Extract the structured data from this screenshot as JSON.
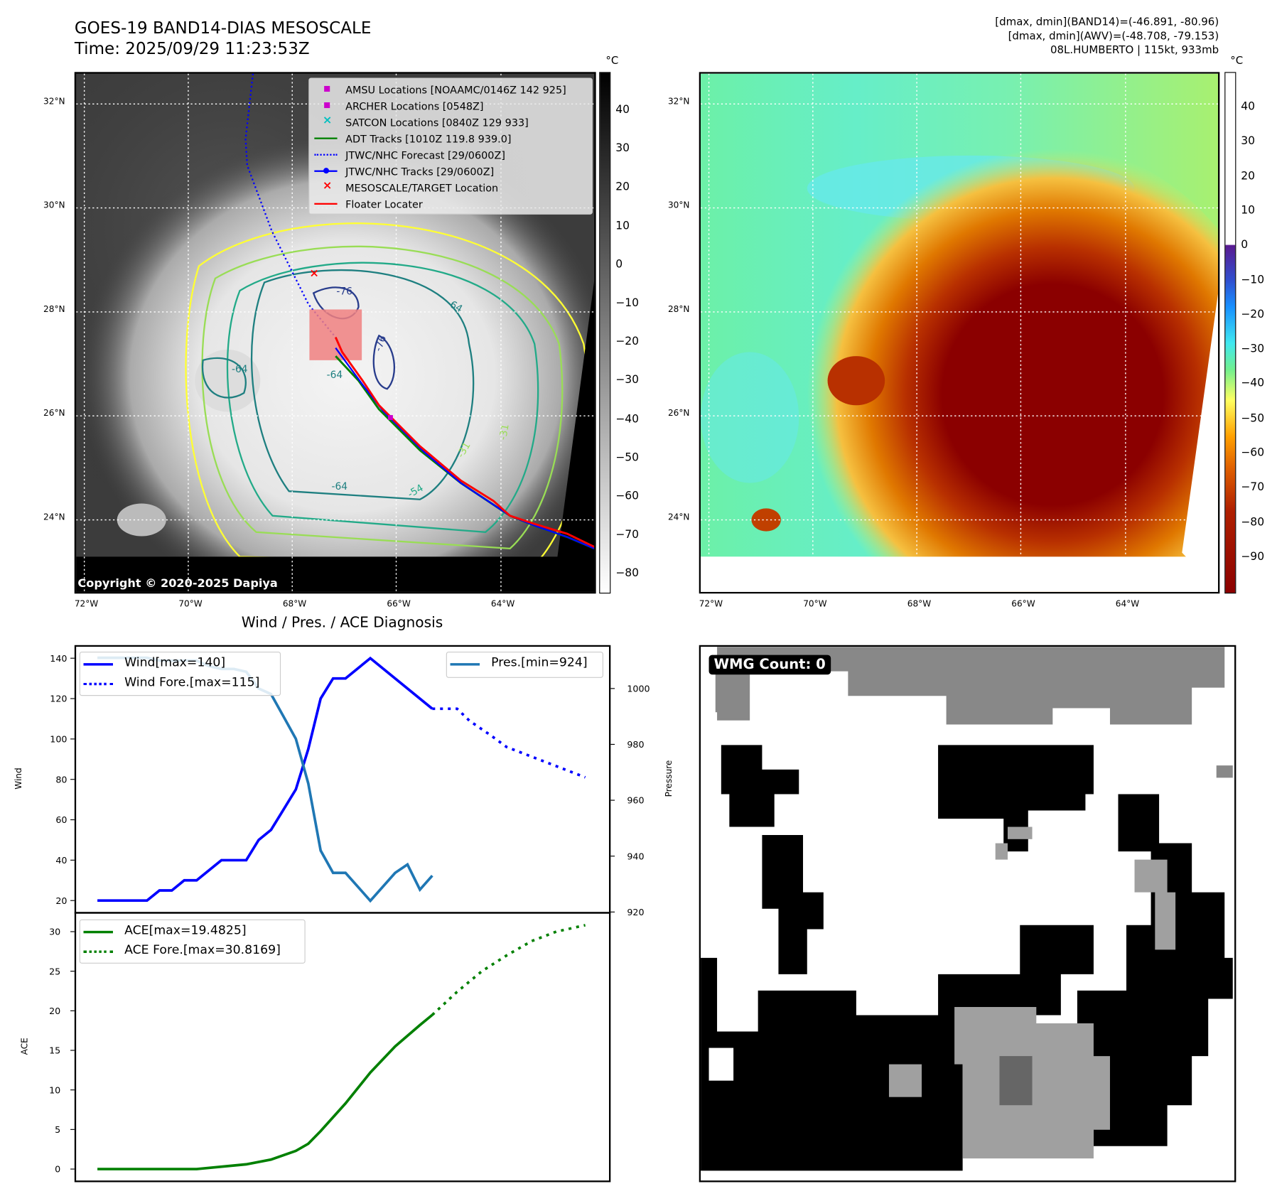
{
  "header": {
    "title_line1": "GOES-19 BAND14-DIAS MESOSCALE",
    "title_line2": "Time: 2025/09/29 11:23:53Z",
    "stats_line1": "[dmax, dmin](BAND14)=(-46.891, -80.96)",
    "stats_line2": "[dmax, dmin](AWV)=(-48.708, -79.153)",
    "stats_line3": "08L.HUMBERTO | 115kt, 933mb"
  },
  "maps": {
    "lon_ticks": [
      "72°W",
      "70°W",
      "68°W",
      "66°W",
      "64°W"
    ],
    "lat_ticks": [
      "32°N",
      "30°N",
      "28°N",
      "26°N",
      "24°N"
    ],
    "left_colorbar": {
      "unit": "°C",
      "ticks": [
        "40",
        "30",
        "20",
        "10",
        "0",
        "−10",
        "−20",
        "−30",
        "−40",
        "−50",
        "−60",
        "−70",
        "−80"
      ]
    },
    "right_colorbar": {
      "unit": "°C",
      "ticks": [
        "40",
        "30",
        "20",
        "10",
        "0",
        "−10",
        "−20",
        "−30",
        "−40",
        "−50",
        "−60",
        "−70",
        "−80",
        "−90"
      ]
    },
    "legend": [
      {
        "label": "AMSU Locations [NOAAMC/0146Z 142 925]",
        "color": "#cc00cc",
        "symbol": "square"
      },
      {
        "label": "ARCHER Locations [0548Z]",
        "color": "#cc00cc",
        "symbol": "square"
      },
      {
        "label": "SATCON Locations [0840Z 129 933]",
        "color": "#00bfbf",
        "symbol": "x"
      },
      {
        "label": "ADT Tracks [1010Z 119.8 939.0]",
        "color": "#008000",
        "symbol": "line"
      },
      {
        "label": "JTWC/NHC Forecast [29/0600Z]",
        "color": "#0000ff",
        "symbol": "dotted"
      },
      {
        "label": "JTWC/NHC Tracks [29/0600Z]",
        "color": "#0000ff",
        "symbol": "line-dot"
      },
      {
        "label": "MESOSCALE/TARGET Location",
        "color": "#ff0000",
        "symbol": "x"
      },
      {
        "label": "Floater Locater",
        "color": "#ff0000",
        "symbol": "line"
      }
    ],
    "contour_labels": [
      "-76",
      "-64",
      "-64",
      "-76",
      "-64",
      "-64",
      "-54",
      "-31",
      "-31"
    ],
    "copyright": "Copyright © 2020-2025 Dapiya"
  },
  "chart_data": [
    {
      "type": "line",
      "title": "Wind / Pres. / ACE Diagnosis",
      "ylabel": "Wind",
      "y2label": "Pressure",
      "ylim": [
        15,
        146
      ],
      "y2lim": [
        919,
        1017
      ],
      "yticks": [
        "20",
        "40",
        "60",
        "80",
        "100",
        "120",
        "140"
      ],
      "y2ticks": [
        "920",
        "940",
        "960",
        "980",
        "1000"
      ],
      "series": [
        {
          "name": "Wind[max=140]",
          "color": "#0000ff",
          "style": "solid",
          "axis": "left",
          "x": [
            0,
            24,
            30,
            36,
            42,
            48,
            54,
            60,
            72,
            78,
            84,
            90,
            96,
            102,
            108,
            114,
            120,
            132,
            162
          ],
          "y": [
            20,
            20,
            25,
            25,
            30,
            30,
            35,
            40,
            40,
            50,
            55,
            65,
            75,
            95,
            120,
            130,
            130,
            140,
            115
          ]
        },
        {
          "name": "Wind Fore.[max=115]",
          "color": "#0000ff",
          "style": "dotted",
          "axis": "left",
          "x": [
            162,
            174,
            180,
            190,
            198,
            236
          ],
          "y": [
            115,
            115,
            109,
            102,
            96,
            81
          ]
        },
        {
          "name": "Pres.[min=924]",
          "color": "#1f77b4",
          "style": "solid",
          "axis": "right",
          "x": [
            0,
            24,
            30,
            48,
            54,
            60,
            66,
            72,
            78,
            84,
            90,
            96,
            102,
            108,
            114,
            120,
            132,
            144,
            150,
            156,
            162
          ],
          "y": [
            1011,
            1011,
            1010,
            1010,
            1008,
            1007,
            1007,
            1006,
            1000,
            998,
            990,
            982,
            966,
            942,
            934,
            934,
            924,
            934,
            937,
            928,
            933
          ]
        }
      ]
    },
    {
      "type": "line",
      "ylabel": "ACE",
      "ylim": [
        -1.5,
        31.8
      ],
      "yticks": [
        "0",
        "5",
        "10",
        "15",
        "20",
        "25",
        "30"
      ],
      "series": [
        {
          "name": "ACE[max=19.4825]",
          "color": "#008000",
          "style": "solid",
          "x": [
            0,
            48,
            72,
            84,
            96,
            102,
            108,
            120,
            132,
            144,
            156,
            162
          ],
          "y": [
            0,
            0,
            0.6,
            1.2,
            2.3,
            3.2,
            4.8,
            8.3,
            12.2,
            15.5,
            18.2,
            19.48
          ]
        },
        {
          "name": "ACE Fore.[max=30.8169]",
          "color": "#008000",
          "style": "dotted",
          "x": [
            162,
            174,
            186,
            198,
            210,
            222,
            236
          ],
          "y": [
            19.48,
            22.4,
            25,
            27,
            28.8,
            30,
            30.82
          ]
        }
      ]
    }
  ],
  "wmg": {
    "label": "WMG Count: 0"
  }
}
